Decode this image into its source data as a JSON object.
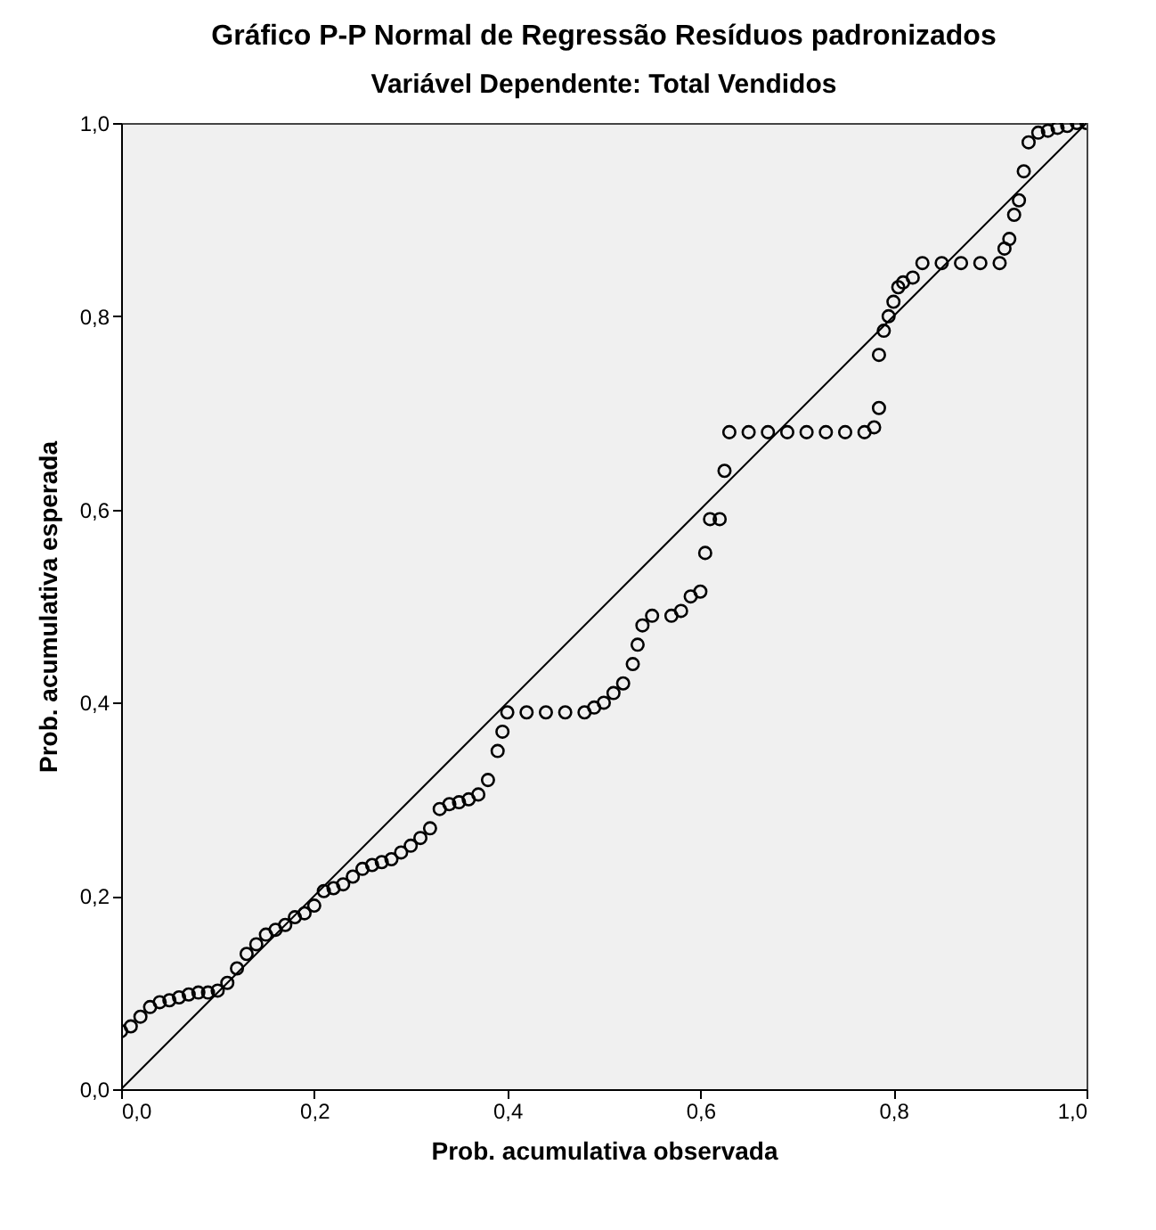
{
  "chart_data": {
    "type": "scatter",
    "title": "Gráfico P-P Normal de Regressão Resíduos padronizados",
    "subtitle": "Variável Dependente: Total Vendidos",
    "xlabel": "Prob. acumulativa observada",
    "ylabel": "Prob. acumulativa esperada",
    "xlim": [
      0,
      1
    ],
    "ylim": [
      0,
      1
    ],
    "xticks": [
      {
        "value": 0,
        "label": "0,0"
      },
      {
        "value": 0.2,
        "label": "0,2"
      },
      {
        "value": 0.4,
        "label": "0,4"
      },
      {
        "value": 0.6,
        "label": "0,6"
      },
      {
        "value": 0.8,
        "label": "0,8"
      },
      {
        "value": 1,
        "label": "1,0"
      }
    ],
    "yticks": [
      {
        "value": 0,
        "label": "0,0"
      },
      {
        "value": 0.2,
        "label": "0,2"
      },
      {
        "value": 0.4,
        "label": "0,4"
      },
      {
        "value": 0.6,
        "label": "0,6"
      },
      {
        "value": 0.8,
        "label": "0,8"
      },
      {
        "value": 1,
        "label": "1,0"
      }
    ],
    "grid": false,
    "series": [
      {
        "marker": "circle",
        "color": "#000000",
        "x": [
          0,
          0.01,
          0.02,
          0.03,
          0.04,
          0.05,
          0.06,
          0.07,
          0.08,
          0.09,
          0.1,
          0.11,
          0.12,
          0.13,
          0.14,
          0.15,
          0.16,
          0.17,
          0.18,
          0.19,
          0.2,
          0.21,
          0.22,
          0.23,
          0.24,
          0.25,
          0.26,
          0.27,
          0.28,
          0.29,
          0.3,
          0.31,
          0.32,
          0.33,
          0.34,
          0.35,
          0.36,
          0.37,
          0.38,
          0.39,
          0.395,
          0.4,
          0.42,
          0.44,
          0.46,
          0.48,
          0.49,
          0.5,
          0.51,
          0.52,
          0.53,
          0.535,
          0.54,
          0.55,
          0.57,
          0.58,
          0.59,
          0.6,
          0.605,
          0.61,
          0.62,
          0.625,
          0.63,
          0.65,
          0.67,
          0.69,
          0.71,
          0.73,
          0.75,
          0.77,
          0.78,
          0.785,
          0.785,
          0.79,
          0.795,
          0.8,
          0.805,
          0.81,
          0.82,
          0.83,
          0.85,
          0.87,
          0.89,
          0.91,
          0.915,
          0.92,
          0.925,
          0.93,
          0.935,
          0.94,
          0.95,
          0.96,
          0.97,
          0.98,
          0.99,
          1
        ],
        "values": [
          0.06,
          0.065,
          0.075,
          0.085,
          0.09,
          0.092,
          0.095,
          0.098,
          0.1,
          0.1,
          0.102,
          0.11,
          0.125,
          0.14,
          0.15,
          0.16,
          0.165,
          0.17,
          0.178,
          0.182,
          0.19,
          0.205,
          0.208,
          0.212,
          0.22,
          0.228,
          0.232,
          0.235,
          0.238,
          0.245,
          0.252,
          0.26,
          0.27,
          0.29,
          0.295,
          0.297,
          0.3,
          0.305,
          0.32,
          0.35,
          0.37,
          0.39,
          0.39,
          0.39,
          0.39,
          0.39,
          0.395,
          0.4,
          0.41,
          0.42,
          0.44,
          0.46,
          0.48,
          0.49,
          0.49,
          0.495,
          0.51,
          0.515,
          0.555,
          0.59,
          0.59,
          0.64,
          0.68,
          0.68,
          0.68,
          0.68,
          0.68,
          0.68,
          0.68,
          0.68,
          0.685,
          0.705,
          0.76,
          0.785,
          0.8,
          0.815,
          0.83,
          0.835,
          0.84,
          0.855,
          0.855,
          0.855,
          0.855,
          0.855,
          0.87,
          0.88,
          0.905,
          0.92,
          0.95,
          0.98,
          0.99,
          0.992,
          0.995,
          0.997,
          1,
          1
        ]
      },
      {
        "type": "line",
        "marker": "none",
        "line_style": "solid",
        "color": "#000000",
        "x": [
          0,
          1
        ],
        "values": [
          0,
          1
        ]
      }
    ]
  }
}
